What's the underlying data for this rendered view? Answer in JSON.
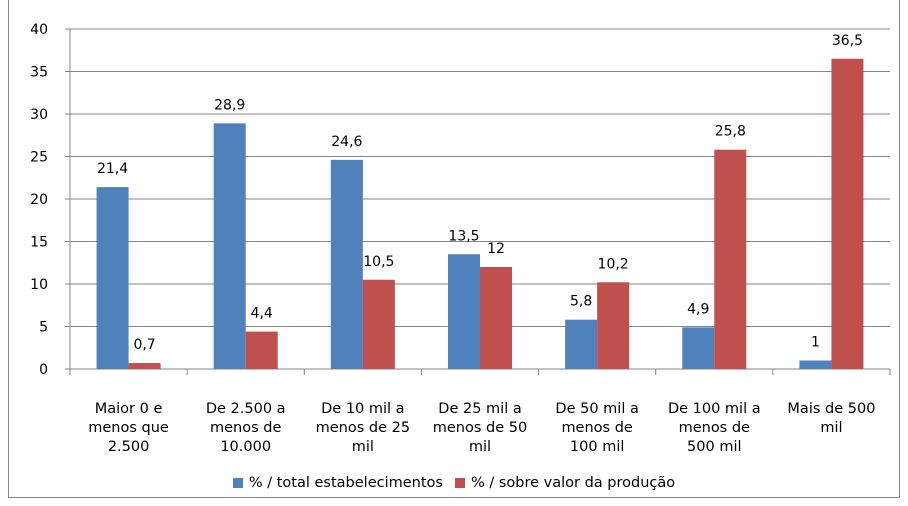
{
  "chart_data": {
    "type": "bar",
    "categories": [
      "Maior 0 e menos que 2.500",
      "De 2.500 a menos de 10.000",
      "De 10 mil a menos de 25 mil",
      "De 25 mil a menos de 50 mil",
      "De 50 mil a menos de 100 mil",
      "De 100 mil a menos de 500 mil",
      "Mais de 500 mil"
    ],
    "category_lines": [
      [
        "Maior 0 e",
        "menos que",
        "2.500"
      ],
      [
        "De 2.500 a",
        "menos de",
        "10.000"
      ],
      [
        "De 10 mil a",
        "menos de 25",
        "mil"
      ],
      [
        "De 25 mil a",
        "menos de 50",
        "mil"
      ],
      [
        "De 50 mil a",
        "menos de",
        "100 mil"
      ],
      [
        "De 100 mil a",
        "menos de",
        "500 mil"
      ],
      [
        "Mais de 500",
        "mil"
      ]
    ],
    "series": [
      {
        "name": "% / total estabelecimentos",
        "color": "#4F81BD",
        "values": [
          21.4,
          28.9,
          24.6,
          13.5,
          5.8,
          4.9,
          1
        ],
        "labels": [
          "21,4",
          "28,9",
          "24,6",
          "13,5",
          "5,8",
          "4,9",
          "1"
        ]
      },
      {
        "name": "% / sobre valor da produção",
        "color": "#C0504D",
        "values": [
          0.7,
          4.4,
          10.5,
          12,
          10.2,
          25.8,
          36.5
        ],
        "labels": [
          "0,7",
          "4,4",
          "10,5",
          "12",
          "10,2",
          "25,8",
          "36,5"
        ]
      }
    ],
    "ylim": [
      0,
      40
    ],
    "yticks": [
      0,
      5,
      10,
      15,
      20,
      25,
      30,
      35,
      40
    ],
    "grid": true,
    "legend": "bottom"
  }
}
